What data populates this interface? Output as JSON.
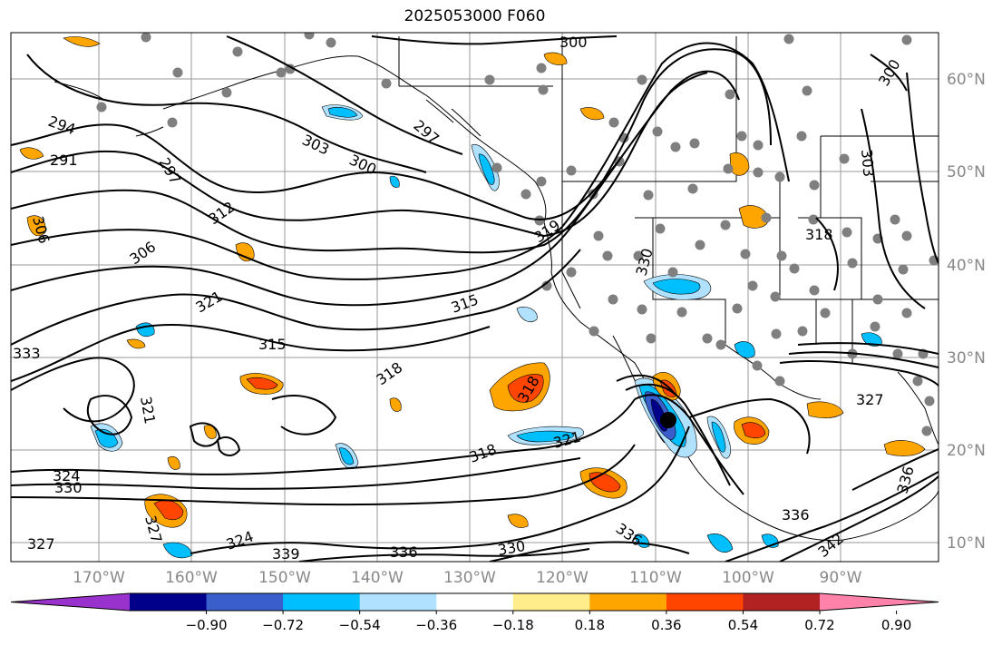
{
  "title": "2025053000 F060",
  "lon_labels": [
    "170°W",
    "160°W",
    "150°W",
    "140°W",
    "130°W",
    "120°W",
    "110°W",
    "100°W",
    "90°W"
  ],
  "lat_labels": [
    "60°N",
    "50°N",
    "40°N",
    "30°N",
    "20°N",
    "10°N"
  ],
  "colorbar": {
    "colors": [
      "#9932cc",
      "#00008b",
      "#3a5fcd",
      "#00bfff",
      "#b0e2ff",
      "#ffffff",
      "#ffec8b",
      "#ffa500",
      "#ff4500",
      "#b22222",
      "#ff82ab"
    ],
    "tick_labels": [
      "−0.90",
      "−0.72",
      "−0.54",
      "−0.36",
      "−0.18",
      "0.18",
      "0.36",
      "0.54",
      "0.72",
      "0.90"
    ]
  },
  "contour_labels": [
    {
      "id": "c294",
      "text": "294"
    },
    {
      "id": "c291",
      "text": "291"
    },
    {
      "id": "c297a",
      "text": "297"
    },
    {
      "id": "c297b",
      "text": "297"
    },
    {
      "id": "c303a",
      "text": "303"
    },
    {
      "id": "c300a",
      "text": "300"
    },
    {
      "id": "c300top",
      "text": "300"
    },
    {
      "id": "c312",
      "text": "312"
    },
    {
      "id": "c306a",
      "text": "306"
    },
    {
      "id": "c306b",
      "text": "306"
    },
    {
      "id": "c321a",
      "text": "321"
    },
    {
      "id": "c315a",
      "text": "315"
    },
    {
      "id": "c315b",
      "text": "315"
    },
    {
      "id": "c318a",
      "text": "318"
    },
    {
      "id": "c318b",
      "text": "318"
    },
    {
      "id": "c318c",
      "text": "318"
    },
    {
      "id": "c321b",
      "text": "321"
    },
    {
      "id": "c319",
      "text": "319"
    },
    {
      "id": "c330a",
      "text": "330"
    },
    {
      "id": "c318d",
      "text": "318"
    },
    {
      "id": "c327a",
      "text": "327"
    },
    {
      "id": "c336a",
      "text": "336"
    },
    {
      "id": "c336b",
      "text": "336"
    },
    {
      "id": "c336c",
      "text": "336"
    },
    {
      "id": "c342",
      "text": "342"
    },
    {
      "id": "c324a",
      "text": "324"
    },
    {
      "id": "c330b",
      "text": "330"
    },
    {
      "id": "c327b",
      "text": "327"
    },
    {
      "id": "c339",
      "text": "339"
    },
    {
      "id": "c300r",
      "text": "300"
    },
    {
      "id": "c303r",
      "text": "303"
    },
    {
      "id": "c327l",
      "text": "327"
    },
    {
      "id": "c321l",
      "text": "321"
    },
    {
      "id": "c324b",
      "text": "324"
    },
    {
      "id": "c333",
      "text": "333"
    },
    {
      "id": "c330c",
      "text": "330"
    },
    {
      "id": "c333b",
      "text": "336"
    }
  ]
}
